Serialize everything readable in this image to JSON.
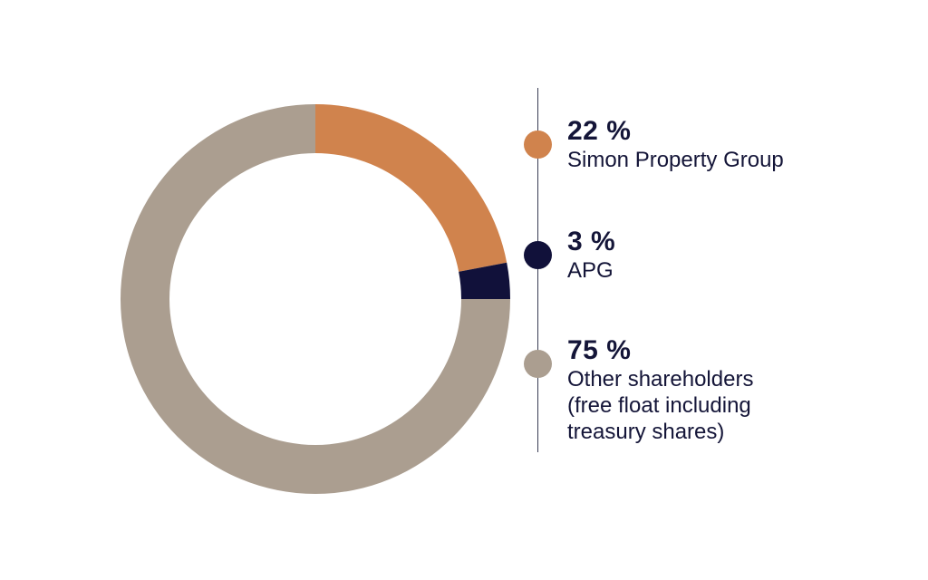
{
  "chart_data": {
    "type": "pie",
    "categories": [
      "Simon Property Group",
      "APG",
      "Other shareholders\n(free float including\ntreasury shares)"
    ],
    "values": [
      22,
      3,
      75
    ],
    "value_labels": [
      "22 %",
      "3 %",
      "75 %"
    ],
    "colors": [
      "#d0834d",
      "#11113a",
      "#ab9e90"
    ],
    "donut": true,
    "legend_position": "right",
    "title": ""
  }
}
